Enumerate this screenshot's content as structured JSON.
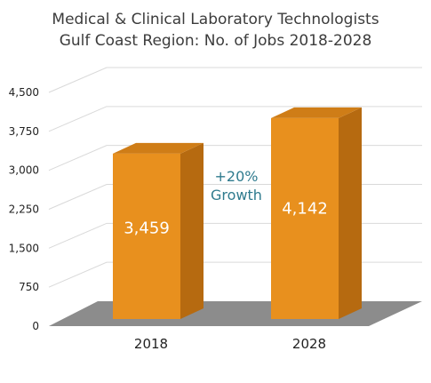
{
  "chart_data": {
    "type": "bar",
    "title_line1": "Medical & Clinical Laboratory Technologists",
    "title_line2": "Gulf Coast Region: No. of Jobs 2018-2028",
    "categories": [
      "2018",
      "2028"
    ],
    "values": [
      3459,
      4142
    ],
    "value_labels": [
      "3,459",
      "4,142"
    ],
    "ylim": [
      0,
      4500
    ],
    "yticks": [
      0,
      750,
      1500,
      2250,
      3000,
      3750,
      4500
    ],
    "ytick_labels": [
      "0",
      "750",
      "1,500",
      "2,250",
      "3,000",
      "3,750",
      "4,500"
    ],
    "annotation_line1": "+20%",
    "annotation_line2": "Growth",
    "grid": true,
    "colors": {
      "bar_front": "#e8901e",
      "bar_side": "#b66a10",
      "bar_top": "#cf7d17",
      "floor": "#8c8c8c",
      "grid": "#d9d9d9",
      "annotation": "#2f7b8e"
    }
  }
}
